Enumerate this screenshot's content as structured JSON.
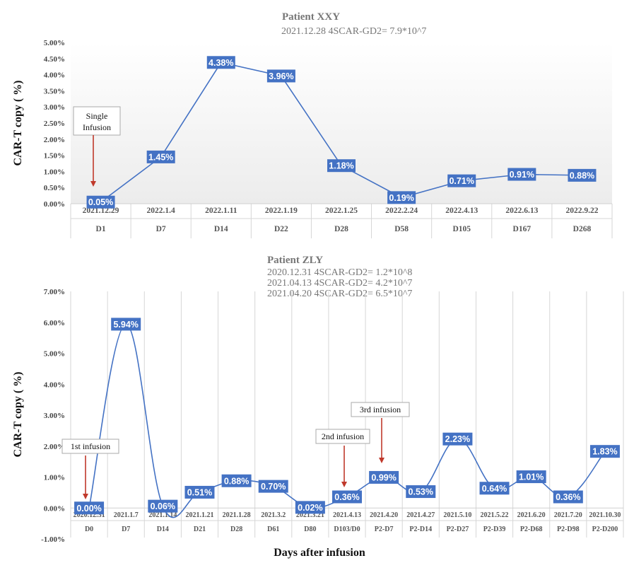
{
  "chart_data": [
    {
      "type": "line",
      "title": "Patient  XXY",
      "subtitle": [
        "2021.12.28  4SCAR-GD2= 7.9*10^7"
      ],
      "ylabel": "CAR-T copy ( %)",
      "xlabel": "",
      "ylim": [
        0,
        5
      ],
      "yticks": [
        "0.00%",
        "0.50%",
        "1.00%",
        "1.50%",
        "2.00%",
        "2.50%",
        "3.00%",
        "3.50%",
        "4.00%",
        "4.50%",
        "5.00%"
      ],
      "categories": [
        "2021.12.29",
        "2022.1.4",
        "2022.1.11",
        "2022.1.19",
        "2022.1.25",
        "2022.2.24",
        "2022.4.13",
        "2022.6.13",
        "2022.9.22"
      ],
      "categories_day": [
        "D1",
        "D7",
        "D14",
        "D22",
        "D28",
        "D58",
        "D105",
        "D167",
        "D268"
      ],
      "values": [
        0.05,
        1.45,
        4.38,
        3.96,
        1.18,
        0.19,
        0.71,
        0.91,
        0.88
      ],
      "data_labels": [
        "0.05%",
        "1.45%",
        "4.38%",
        "3.96%",
        "1.18%",
        "0.19%",
        "0.71%",
        "0.91%",
        "0.88%"
      ],
      "smooth": false,
      "annotations": [
        {
          "lines": [
            "Single",
            "Infusion"
          ],
          "category_index": 0
        }
      ],
      "color": "#4472C4"
    },
    {
      "type": "line",
      "title": "Patient  ZLY",
      "subtitle": [
        "2020.12.31 4SCAR-GD2= 1.2*10^8",
        "2021.04.13 4SCAR-GD2= 4.2*10^7",
        "2021.04.20 4SCAR-GD2= 6.5*10^7"
      ],
      "ylabel": "CAR-T copy ( %)",
      "xlabel": "Days after infusion",
      "ylim": [
        -1,
        7
      ],
      "yticks": [
        "-1.00%",
        "0.00%",
        "1.00%",
        "2.00%",
        "3.00%",
        "4.00%",
        "5.00%",
        "6.00%",
        "7.00%"
      ],
      "categories": [
        "2020.12.31",
        "2021.1.7",
        "2021.1.14",
        "2021.1.21",
        "2021.1.28",
        "2021.3.2",
        "2021.3.21",
        "2021.4.13",
        "2021.4.20",
        "2021.4.27",
        "2021.5.10",
        "2021.5.22",
        "2021.6.20",
        "2021.7.20",
        "2021.10.30"
      ],
      "categories_day": [
        "D0",
        "D7",
        "D14",
        "D21",
        "D28",
        "D61",
        "D80",
        "D103/D0",
        "P2-D7",
        "P2-D14",
        "P2-D27",
        "P2-D39",
        "P2-D68",
        "P2-D98",
        "P2-D200"
      ],
      "values": [
        0.0,
        5.94,
        0.06,
        0.51,
        0.88,
        0.7,
        0.02,
        0.36,
        0.99,
        0.53,
        2.23,
        0.64,
        1.01,
        0.36,
        1.83
      ],
      "data_labels": [
        "0.00%",
        "5.94%",
        "0.06%",
        "0.51%",
        "0.88%",
        "0.70%",
        "0.02%",
        "0.36%",
        "0.99%",
        "0.53%",
        "2.23%",
        "0.64%",
        "1.01%",
        "0.36%",
        "1.83%"
      ],
      "smooth": true,
      "annotations": [
        {
          "lines": [
            "1st infusion"
          ],
          "category_index": 0
        },
        {
          "lines": [
            "2nd infusion"
          ],
          "category_index": 7
        },
        {
          "lines": [
            "3rd infusion"
          ],
          "category_index": 8
        }
      ],
      "color": "#4472C4"
    }
  ]
}
